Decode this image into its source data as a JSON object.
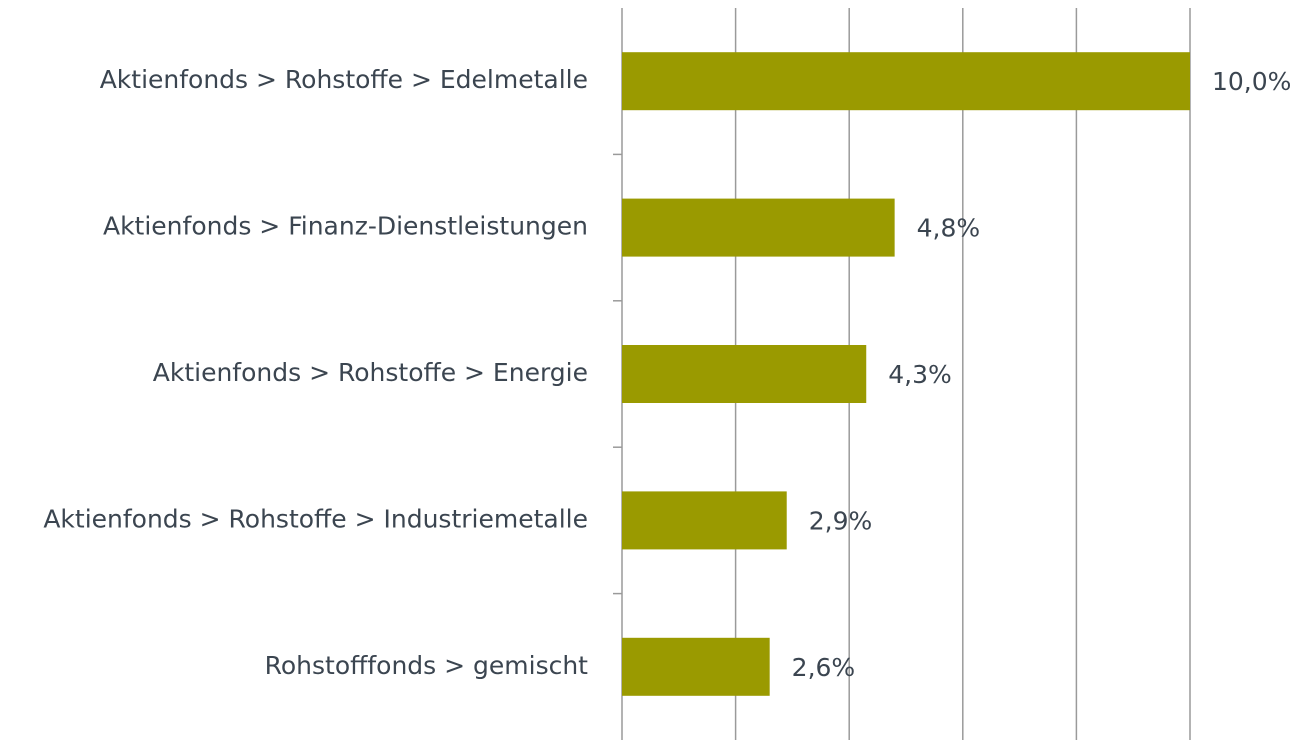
{
  "chart_data": {
    "type": "hbar",
    "categories": [
      "Aktienfonds > Rohstoffe > Edelmetalle",
      "Aktienfonds > Finanz-Dienstleistungen",
      "Aktienfonds > Rohstoffe > Energie",
      "Aktienfonds > Rohstoffe > Industriemetalle",
      "Rohstofffonds > gemischt"
    ],
    "values": [
      10.0,
      4.8,
      4.3,
      2.9,
      2.6
    ],
    "value_labels": [
      "10,0%",
      "4,8%",
      "4,3%",
      "2,9%",
      "2,6%"
    ],
    "color": "#9a9a00",
    "xlim": [
      0,
      10
    ],
    "xticks": [
      0,
      2,
      4,
      6,
      8,
      10
    ],
    "grid": true
  }
}
